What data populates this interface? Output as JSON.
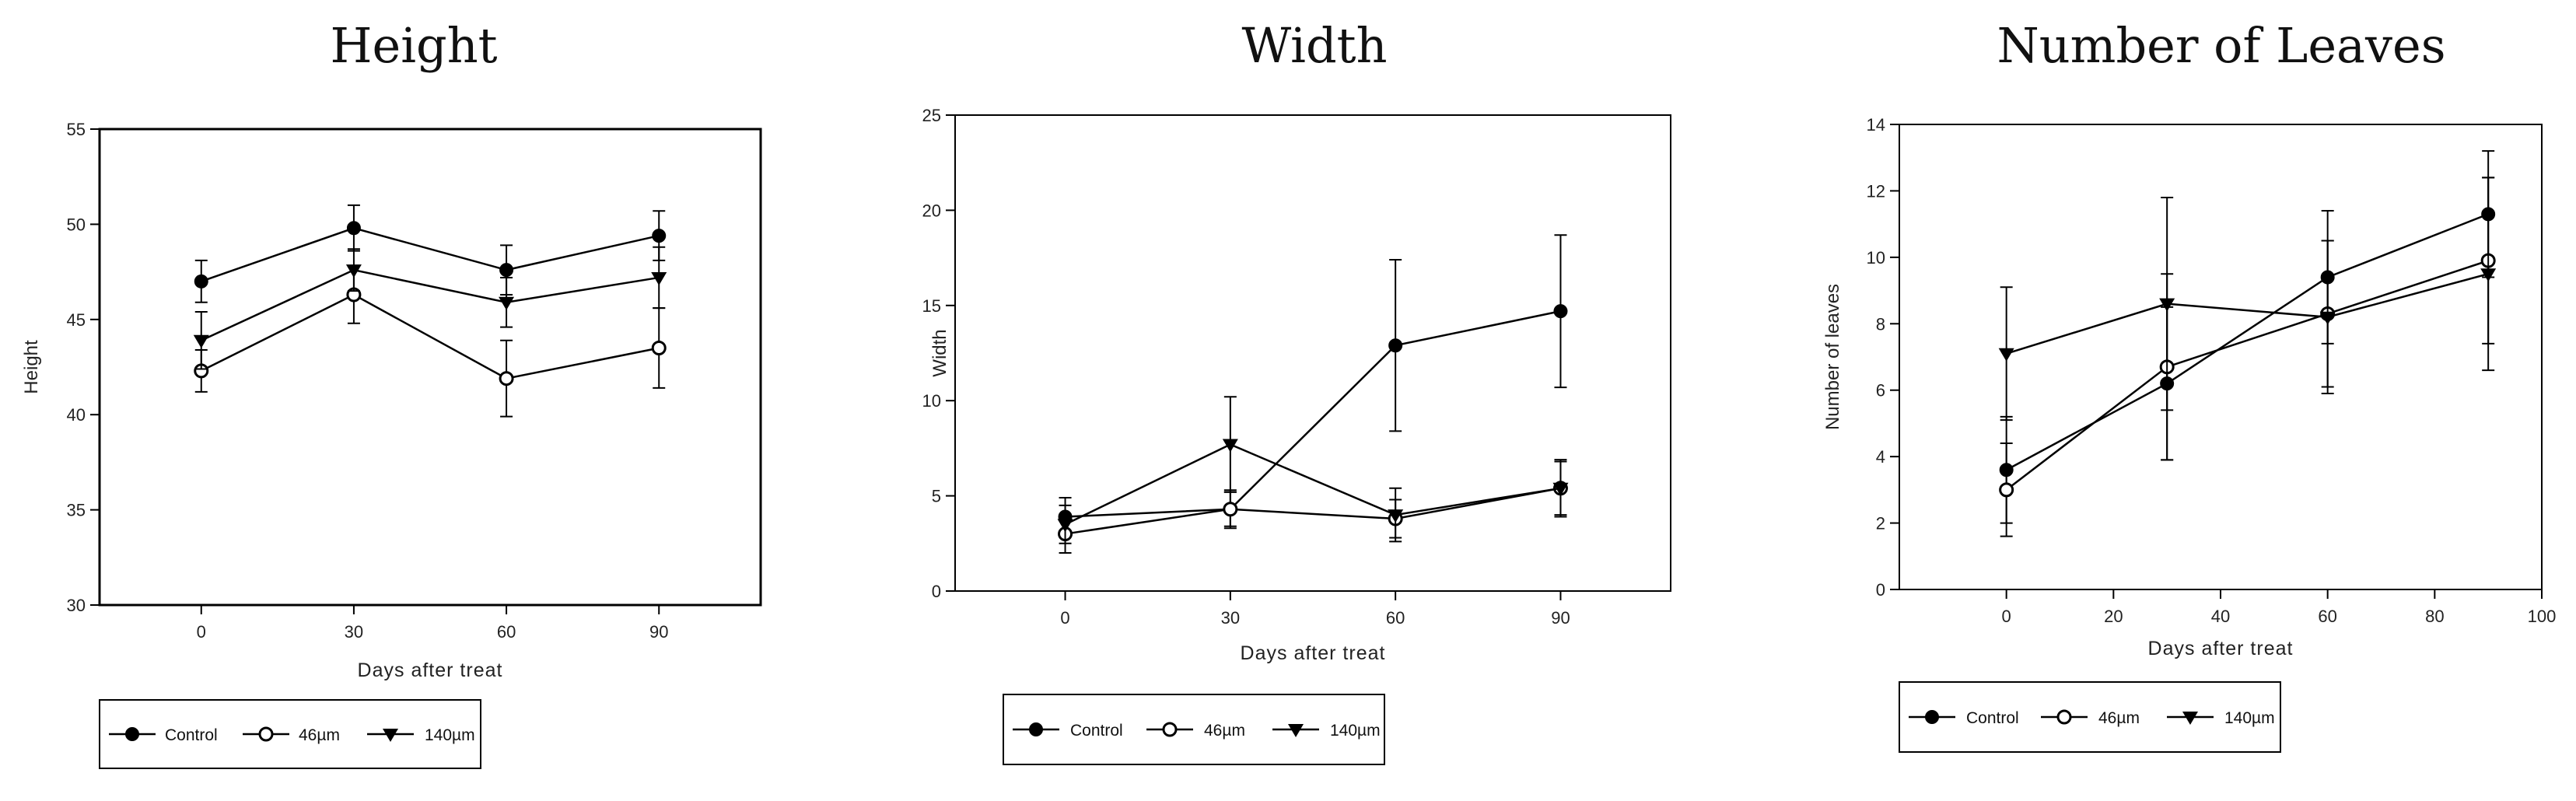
{
  "chart_data": [
    {
      "type": "line",
      "title": "Height",
      "xlabel": "Days after treat",
      "ylabel": "Height",
      "xlim": [
        -20,
        110
      ],
      "ylim": [
        30,
        55
      ],
      "xticks": [
        0,
        30,
        60,
        90
      ],
      "yticks": [
        30,
        35,
        40,
        45,
        50,
        55
      ],
      "x": [
        0,
        30,
        60,
        90
      ],
      "grid": false,
      "legend_position": "below-left",
      "series": [
        {
          "name": "Control",
          "marker": "filled-circle",
          "values": [
            47.0,
            49.8,
            47.6,
            49.4
          ],
          "errors": [
            1.1,
            1.2,
            1.3,
            1.3
          ]
        },
        {
          "name": "46µm",
          "marker": "open-circle",
          "values": [
            42.3,
            46.3,
            41.9,
            43.5
          ],
          "errors": [
            1.1,
            1.5,
            2.0,
            2.1
          ]
        },
        {
          "name": "140µm",
          "marker": "filled-triangle-down",
          "values": [
            43.9,
            47.6,
            45.9,
            47.2
          ],
          "errors": [
            1.5,
            1.1,
            1.3,
            1.6
          ]
        }
      ]
    },
    {
      "type": "line",
      "title": "Width",
      "xlabel": "Days after treat",
      "ylabel": "Width",
      "xlim": [
        -20,
        110
      ],
      "ylim": [
        0,
        25
      ],
      "xticks": [
        0,
        30,
        60,
        90
      ],
      "yticks": [
        0,
        5,
        10,
        15,
        20,
        25
      ],
      "x": [
        0,
        30,
        60,
        90
      ],
      "grid": false,
      "legend_position": "below-left",
      "series": [
        {
          "name": "Control",
          "marker": "filled-circle",
          "values": [
            3.9,
            4.3,
            12.9,
            14.7
          ],
          "errors": [
            1.0,
            0.9,
            4.5,
            4.0
          ]
        },
        {
          "name": "46µm",
          "marker": "open-circle",
          "values": [
            3.0,
            4.3,
            3.8,
            5.4
          ],
          "errors": [
            1.0,
            1.0,
            1.0,
            1.5
          ]
        },
        {
          "name": "140µm",
          "marker": "filled-triangle-down",
          "values": [
            3.5,
            7.7,
            4.0,
            5.4
          ],
          "errors": [
            1.0,
            2.5,
            1.4,
            1.4
          ]
        }
      ]
    },
    {
      "type": "line",
      "title": "Number of Leaves",
      "xlabel": "Days after treat",
      "ylabel": "Number of leaves",
      "xlim": [
        -20,
        100
      ],
      "ylim": [
        0,
        14
      ],
      "xticks": [
        0,
        20,
        40,
        60,
        80,
        100
      ],
      "yticks": [
        0,
        2,
        4,
        6,
        8,
        10,
        12,
        14
      ],
      "x": [
        0,
        30,
        60,
        90
      ],
      "grid": false,
      "legend_position": "below-left",
      "series": [
        {
          "name": "Control",
          "marker": "filled-circle",
          "values": [
            3.6,
            6.2,
            9.4,
            11.3
          ],
          "errors": [
            1.6,
            2.3,
            2.0,
            1.9
          ]
        },
        {
          "name": "46µm",
          "marker": "open-circle",
          "values": [
            3.0,
            6.7,
            8.3,
            9.9
          ],
          "errors": [
            1.4,
            2.8,
            2.2,
            2.5
          ]
        },
        {
          "name": "140µm",
          "marker": "filled-triangle-down",
          "values": [
            7.1,
            8.6,
            8.2,
            9.5
          ],
          "errors": [
            2.0,
            3.2,
            2.3,
            2.9
          ]
        }
      ]
    }
  ]
}
